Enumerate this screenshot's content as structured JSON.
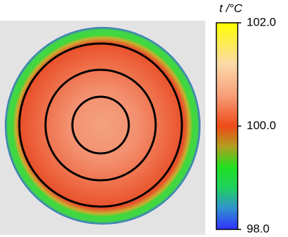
{
  "colorbar": {
    "title": "t /°C",
    "lim": [
      98,
      102
    ],
    "ticks": [
      {
        "value": 102,
        "label": "102.0"
      },
      {
        "value": 100,
        "label": "100.0"
      },
      {
        "value": 98,
        "label": "98.0"
      }
    ]
  }
}
